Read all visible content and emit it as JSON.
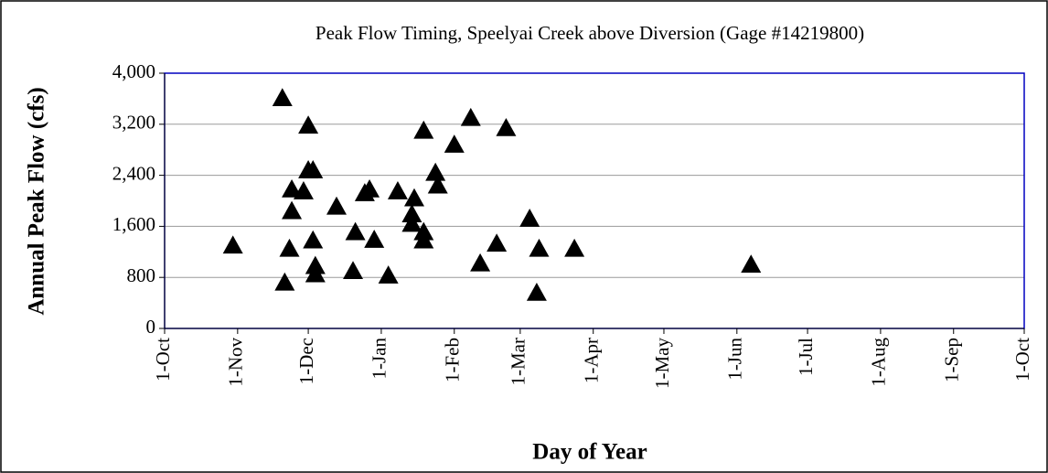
{
  "chart_data": {
    "type": "scatter",
    "title": "Peak Flow Timing, Speelyai Creek above Diversion (Gage #14219800)",
    "x_label": "Day of Year",
    "y_label": "Annual Peak Flow (cfs)",
    "x": [
      29,
      50,
      51,
      54,
      54,
      53,
      59,
      61,
      61,
      63,
      63,
      64,
      64,
      73,
      81,
      80,
      85,
      87,
      89,
      95,
      99,
      106,
      105,
      105,
      110,
      110,
      110,
      115,
      116,
      123,
      130,
      134,
      141,
      145,
      155,
      158,
      159,
      174,
      249
    ],
    "values": [
      1300,
      3610,
      720,
      2180,
      1840,
      1250,
      2150,
      3180,
      2480,
      2480,
      1380,
      980,
      850,
      1910,
      1510,
      900,
      2120,
      2180,
      1390,
      830,
      2150,
      2040,
      1790,
      1640,
      1510,
      1380,
      3100,
      2440,
      2240,
      2880,
      3300,
      1020,
      1330,
      3140,
      1720,
      560,
      1250,
      1250,
      1000
    ],
    "color": "#000000",
    "xlim": [
      0,
      365
    ],
    "xticks": [
      {
        "value": 0,
        "label": "1-Oct"
      },
      {
        "value": 31,
        "label": "1-Nov"
      },
      {
        "value": 61,
        "label": "1-Dec"
      },
      {
        "value": 92,
        "label": "1-Jan"
      },
      {
        "value": 123,
        "label": "1-Feb"
      },
      {
        "value": 151,
        "label": "1-Mar"
      },
      {
        "value": 182,
        "label": "1-Apr"
      },
      {
        "value": 212,
        "label": "1-May"
      },
      {
        "value": 243,
        "label": "1-Jun"
      },
      {
        "value": 273,
        "label": "1-Jul"
      },
      {
        "value": 304,
        "label": "1-Aug"
      },
      {
        "value": 335,
        "label": "1-Sep"
      },
      {
        "value": 365,
        "label": "1-Oct"
      }
    ],
    "ylim": [
      0,
      4000
    ],
    "yticks": [
      0,
      800,
      {
        "value": 1600,
        "label": "1,600"
      },
      {
        "value": 2400,
        "label": "2,400"
      },
      {
        "value": 3200,
        "label": "3,200"
      },
      {
        "value": 4000,
        "label": "4,000"
      }
    ],
    "grid": true
  }
}
